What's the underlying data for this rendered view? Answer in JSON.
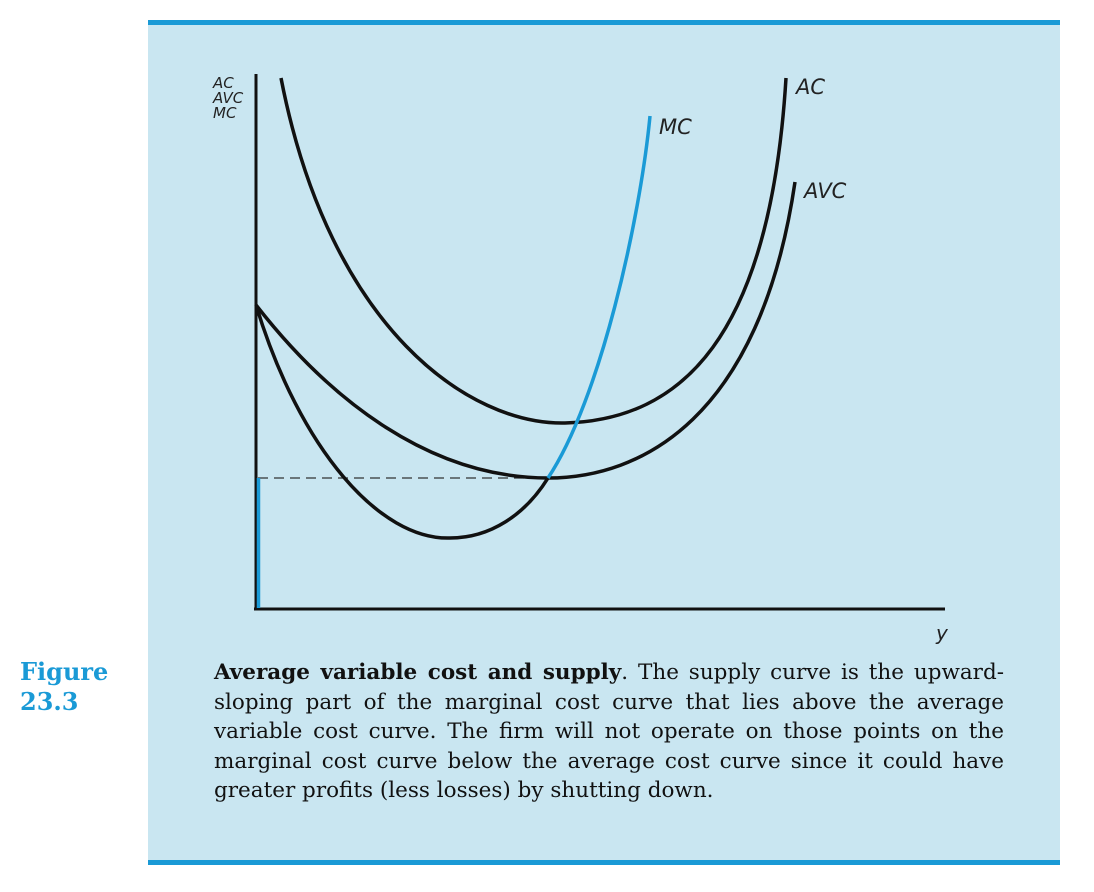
{
  "figure": {
    "label_line1": "Figure",
    "label_line2": "23.3",
    "caption_title": "Average variable cost and supply",
    "caption_body": ".  The supply curve is the upward-sloping part of the marginal cost curve that lies above the average variable cost curve. The firm will not operate on those points on the marginal cost curve below the average cost curve since it could have greater profits (less losses) by shutting down."
  },
  "diagram": {
    "y_axis_labels": [
      "AC",
      "AVC",
      "MC"
    ],
    "x_axis_label": "y",
    "curve_labels": {
      "ac": "AC",
      "avc": "AVC",
      "mc": "MC"
    }
  },
  "colors": {
    "panel_bg": "#c9e6f1",
    "accent": "#1a9ad6",
    "curve": "#111111"
  }
}
